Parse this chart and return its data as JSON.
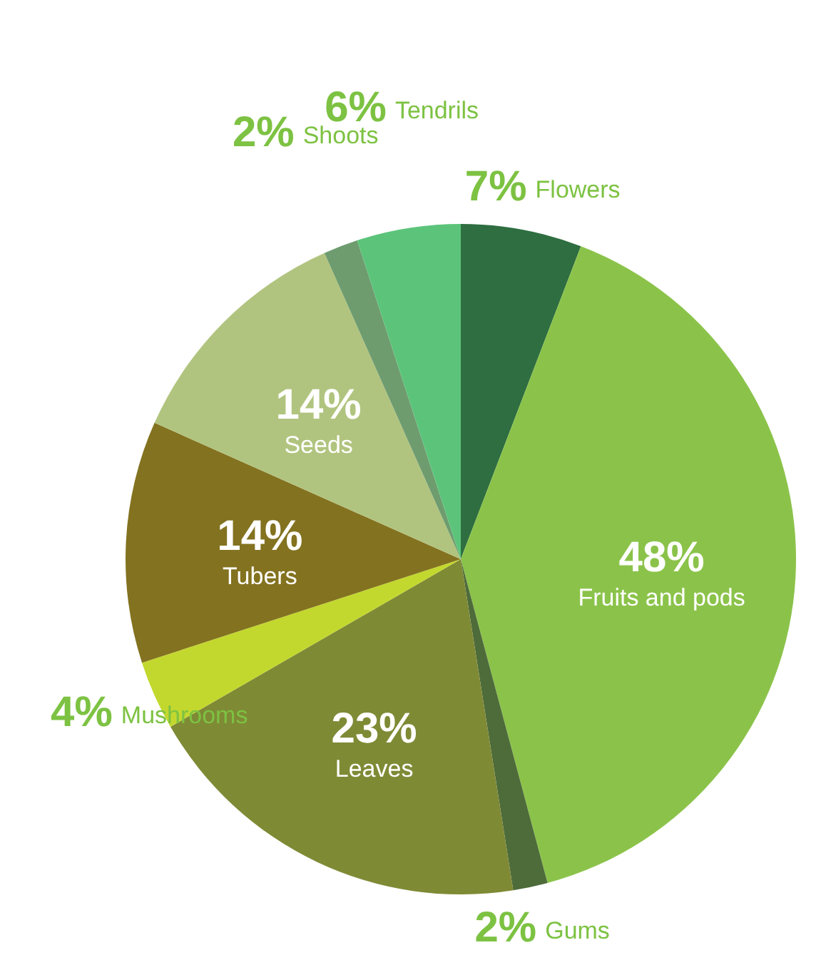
{
  "chart_data": {
    "type": "pie",
    "categories": [
      "Flowers",
      "Fruits and pods",
      "Gums",
      "Leaves",
      "Mushrooms",
      "Tubers",
      "Seeds",
      "Shoots",
      "Tendrils"
    ],
    "values": [
      7,
      48,
      2,
      23,
      4,
      14,
      14,
      2,
      6
    ],
    "value_labels": [
      "7%",
      "48%",
      "2%",
      "23%",
      "4%",
      "14%",
      "14%",
      "2%",
      "6%"
    ],
    "colors": [
      "#2e6e40",
      "#8bc34a",
      "#4e6b3a",
      "#7f8a35",
      "#c3d82e",
      "#83721f",
      "#b1c47f",
      "#6e9c6f",
      "#5cc47a"
    ]
  }
}
